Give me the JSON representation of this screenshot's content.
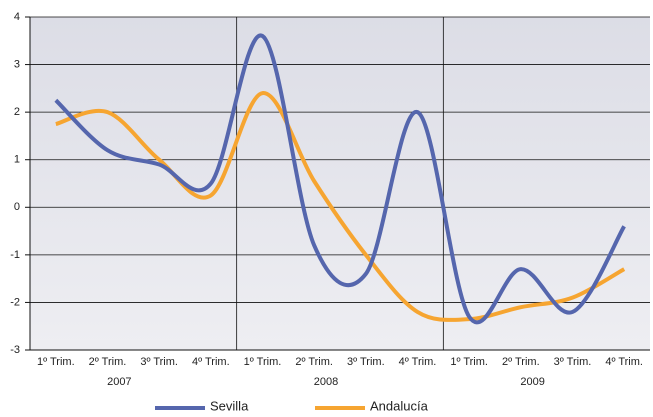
{
  "chart_data": {
    "type": "line",
    "categories": [
      "1º Trim.",
      "2º Trim.",
      "3º Trim.",
      "4º Trim.",
      "1º Trim.",
      "2º Trim.",
      "3º Trim.",
      "4º Trim.",
      "1º Trim.",
      "2º Trim.",
      "3º Trim.",
      "4º Trim."
    ],
    "years": [
      "2007",
      "2008",
      "2009"
    ],
    "series": [
      {
        "name": "Sevilla",
        "color": "#5566ad",
        "values": [
          2.25,
          1.2,
          0.9,
          0.5,
          3.6,
          -0.8,
          -1.4,
          2.0,
          -2.3,
          -1.3,
          -2.2,
          -0.4
        ]
      },
      {
        "name": "Andalucía",
        "color": "#f6a531",
        "values": [
          1.75,
          2.0,
          1.0,
          0.25,
          2.4,
          0.55,
          -1.0,
          -2.2,
          -2.35,
          -2.1,
          -1.9,
          -1.3
        ]
      }
    ],
    "ylim": [
      -3,
      4
    ],
    "yticks": [
      -3,
      -2,
      -1,
      0,
      1,
      2,
      3,
      4
    ],
    "grid": true
  }
}
